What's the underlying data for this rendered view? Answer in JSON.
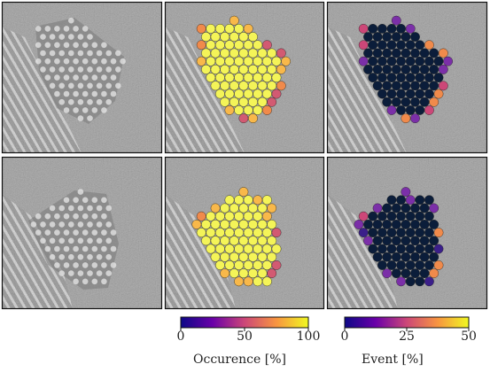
{
  "figure": {
    "rows": 2,
    "panels": [
      {
        "row": 0,
        "kind": "raw"
      },
      {
        "row": 0,
        "kind": "occurrence"
      },
      {
        "row": 0,
        "kind": "event"
      },
      {
        "row": 1,
        "kind": "raw"
      },
      {
        "row": 1,
        "kind": "occurrence"
      },
      {
        "row": 1,
        "kind": "event"
      }
    ]
  },
  "colorbars": [
    {
      "label": "Occurence  [%]",
      "ticks": [
        "0",
        "50",
        "100"
      ],
      "colormap": "plasma",
      "range": [
        0,
        100
      ]
    },
    {
      "label": "Event  [%]",
      "ticks": [
        "0",
        "25",
        "50"
      ],
      "colormap": "plasma",
      "range": [
        0,
        50
      ]
    }
  ],
  "colors": {
    "low": "#0d0887",
    "mid": "#cc4778",
    "high": "#f0f921",
    "dark_cell": "#0b1d3a",
    "yellow_cell": "#f4f458",
    "frame": "#111111"
  }
}
